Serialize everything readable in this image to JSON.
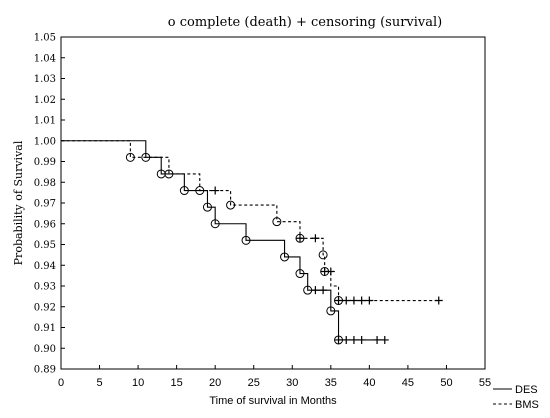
{
  "chart_data": {
    "type": "line",
    "title": "o complete (death)   + censoring (survival)",
    "xlabel": "Time of survival in Months",
    "ylabel": "Probability of Survival",
    "xlim": [
      0,
      55
    ],
    "ylim": [
      0.89,
      1.05
    ],
    "x_ticks": [
      0,
      5,
      10,
      15,
      20,
      25,
      30,
      35,
      40,
      45,
      50,
      55
    ],
    "y_ticks": [
      0.89,
      0.9,
      0.91,
      0.92,
      0.93,
      0.94,
      0.95,
      0.96,
      0.97,
      0.98,
      0.99,
      1.0,
      1.01,
      1.02,
      1.03,
      1.04,
      1.05
    ],
    "grid": false,
    "legend": "bottom-right",
    "series": [
      {
        "name": "DES",
        "style": "solid",
        "color": "#000000",
        "steps": [
          [
            0,
            1.0
          ],
          [
            11,
            0.992
          ],
          [
            13,
            0.984
          ],
          [
            16,
            0.976
          ],
          [
            19,
            0.968
          ],
          [
            20,
            0.96
          ],
          [
            24,
            0.952
          ],
          [
            29,
            0.944
          ],
          [
            31,
            0.936
          ],
          [
            32,
            0.928
          ],
          [
            35,
            0.918
          ],
          [
            36,
            0.904
          ],
          [
            42,
            0.904
          ]
        ],
        "events": [
          [
            11,
            0.992
          ],
          [
            13,
            0.984
          ],
          [
            16,
            0.976
          ],
          [
            19,
            0.968
          ],
          [
            20,
            0.96
          ],
          [
            24,
            0.952
          ],
          [
            29,
            0.944
          ],
          [
            31,
            0.936
          ],
          [
            32,
            0.928
          ],
          [
            35,
            0.918
          ],
          [
            36,
            0.904
          ]
        ],
        "censored": [
          [
            33,
            0.928
          ],
          [
            34,
            0.928
          ],
          [
            36,
            0.904
          ],
          [
            37,
            0.904
          ],
          [
            38,
            0.904
          ],
          [
            39,
            0.904
          ],
          [
            41,
            0.904
          ],
          [
            42,
            0.904
          ]
        ]
      },
      {
        "name": "BMS",
        "style": "dashed",
        "color": "#000000",
        "steps": [
          [
            0,
            1.0
          ],
          [
            9,
            0.992
          ],
          [
            14,
            0.984
          ],
          [
            18,
            0.976
          ],
          [
            22,
            0.969
          ],
          [
            28,
            0.961
          ],
          [
            31,
            0.953
          ],
          [
            34,
            0.945
          ],
          [
            34.2,
            0.937
          ],
          [
            35,
            0.93
          ],
          [
            36,
            0.923
          ],
          [
            49,
            0.923
          ]
        ],
        "events": [
          [
            9,
            0.992
          ],
          [
            14,
            0.984
          ],
          [
            18,
            0.976
          ],
          [
            22,
            0.969
          ],
          [
            28,
            0.961
          ],
          [
            31,
            0.953
          ],
          [
            34,
            0.945
          ],
          [
            34.2,
            0.937
          ],
          [
            36,
            0.923
          ]
        ],
        "censored": [
          [
            20,
            0.976
          ],
          [
            31,
            0.953
          ],
          [
            33,
            0.953
          ],
          [
            34.2,
            0.937
          ],
          [
            35,
            0.937
          ],
          [
            36,
            0.923
          ],
          [
            37,
            0.923
          ],
          [
            38,
            0.923
          ],
          [
            39,
            0.923
          ],
          [
            40,
            0.923
          ],
          [
            49,
            0.923
          ]
        ]
      }
    ]
  }
}
